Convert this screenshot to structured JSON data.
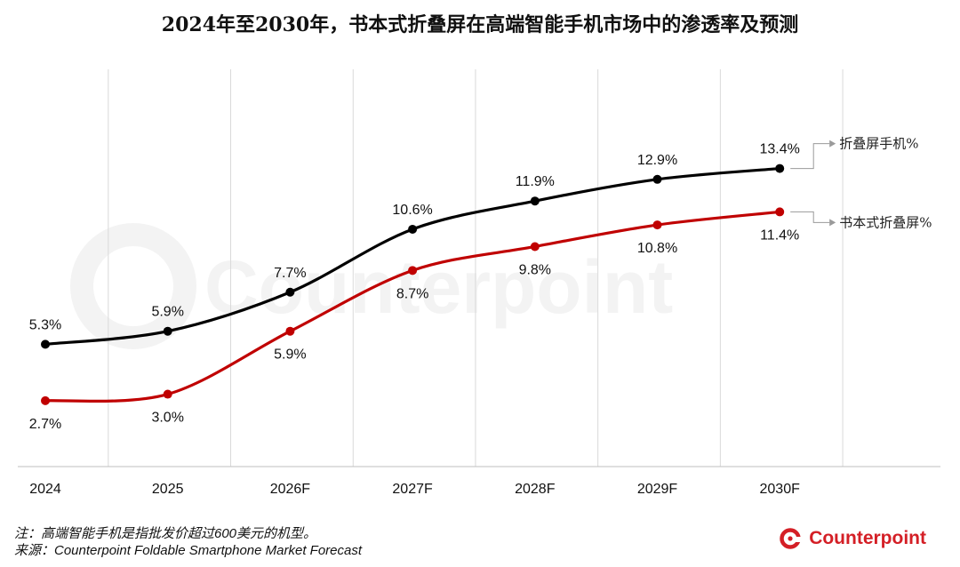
{
  "title": "2024年至2030年，书本式折叠屏在高端智能手机市场中的渗透率及预测",
  "chart_data": {
    "type": "line",
    "categories": [
      "2024",
      "2025",
      "2026F",
      "2027F",
      "2028F",
      "2029F",
      "2030F"
    ],
    "series": [
      {
        "name": "折叠屏手机%",
        "color": "#000000",
        "values": [
          5.3,
          5.9,
          7.7,
          10.6,
          11.9,
          12.9,
          13.4
        ],
        "labels": [
          "5.3%",
          "5.9%",
          "7.7%",
          "10.6%",
          "11.9%",
          "12.9%",
          "13.4%"
        ]
      },
      {
        "name": "书本式折叠屏%",
        "color": "#c00000",
        "values": [
          2.7,
          3.0,
          5.9,
          8.7,
          9.8,
          10.8,
          11.4
        ],
        "labels": [
          "2.7%",
          "3.0%",
          "5.9%",
          "8.7%",
          "9.8%",
          "10.8%",
          "11.4%"
        ]
      }
    ],
    "grid": "vertical",
    "legend": "right, at line ends"
  },
  "footnote": {
    "line1": "注：高端智能手机是指批发价超过600美元的机型。",
    "line2": "来源：Counterpoint Foldable Smartphone Market Forecast"
  },
  "watermark": "Counterpoint",
  "brand": {
    "name": "Counterpoint",
    "color": "#d41f26"
  }
}
